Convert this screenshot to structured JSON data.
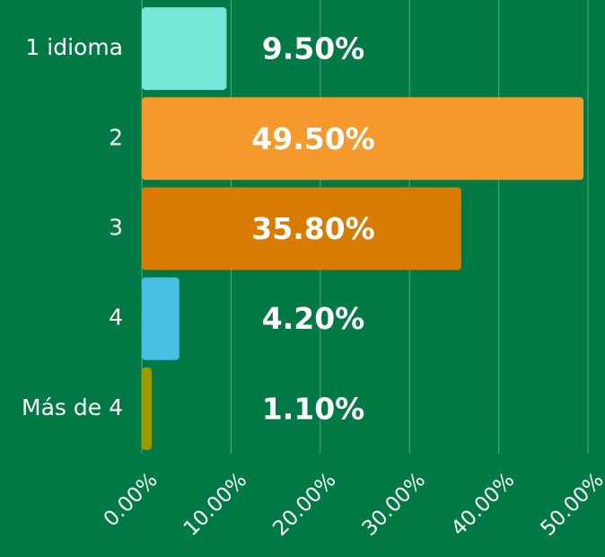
{
  "chart_data": {
    "type": "bar",
    "orientation": "horizontal",
    "categories": [
      "1 idioma",
      "2",
      "3",
      "4",
      "Más de 4"
    ],
    "values": [
      9.5,
      49.5,
      35.8,
      4.2,
      1.1
    ],
    "value_labels": [
      "9.50%",
      "49.50%",
      "35.80%",
      "4.20%",
      "1.10%"
    ],
    "colors": [
      "#76e8d9",
      "#f5992c",
      "#d97b00",
      "#48c0e6",
      "#9b9a00"
    ],
    "xlim": [
      0,
      50
    ],
    "xticks": [
      {
        "value": 0,
        "label": "0.00%"
      },
      {
        "value": 10,
        "label": "10.00%"
      },
      {
        "value": 20,
        "label": "20.00%"
      },
      {
        "value": 30,
        "label": "30.00%"
      },
      {
        "value": 40,
        "label": "40.00%"
      },
      {
        "value": 50,
        "label": "50.00%"
      }
    ],
    "grid": true
  }
}
